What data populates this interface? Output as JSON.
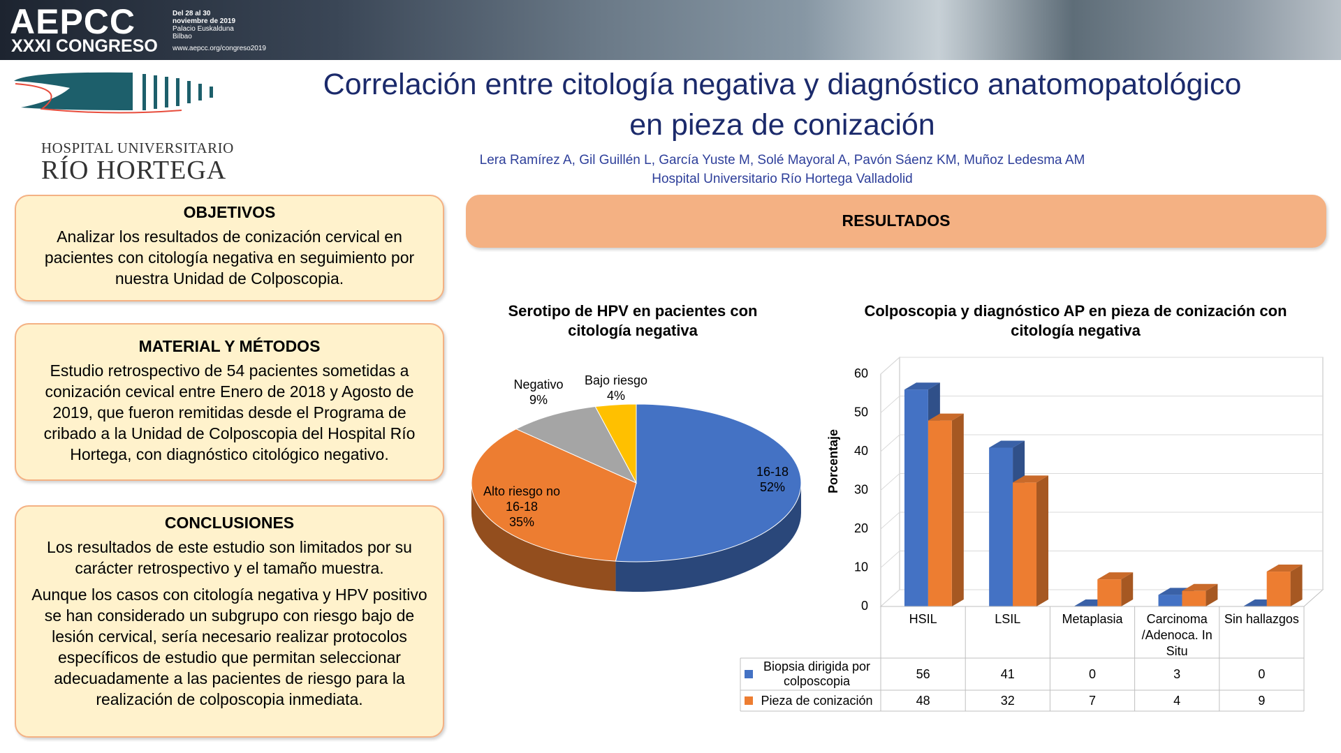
{
  "banner": {
    "name": "AEPCC",
    "edition": "XXXI CONGRESO",
    "details": [
      "Del 28 al 30",
      "noviembre de 2019",
      "Palacio Euskalduna",
      "Bilbao",
      "www.aepcc.org/congreso2019"
    ]
  },
  "logo": {
    "line1": "HOSPITAL UNIVERSITARIO",
    "line2": "RÍO HORTEGA"
  },
  "title": [
    "Correlación entre citología negativa y diagnóstico anatomopatológico",
    "en pieza de conización"
  ],
  "authors": "Lera Ramírez A, Gil Guillén L, García Yuste M, Solé Mayoral A, Pavón Sáenz KM, Muñoz Ledesma AM",
  "affiliation": "Hospital Universitario Río Hortega Valladolid",
  "sections": {
    "objetivos": {
      "title": "OBJETIVOS",
      "paragraphs": [
        "Analizar los resultados de conización cervical en pacientes con citología negativa en seguimiento por nuestra Unidad de Colposcopia."
      ]
    },
    "material": {
      "title": "MATERIAL Y MÉTODOS",
      "paragraphs": [
        "Estudio retrospectivo de 54 pacientes sometidas a conización cevical entre Enero de 2018 y Agosto de 2019, que fueron remitidas desde el Programa de cribado a la Unidad de Colposcopia del Hospital Río Hortega, con diagnóstico citológico negativo."
      ]
    },
    "conclusiones": {
      "title": "CONCLUSIONES",
      "paragraphs": [
        "Los resultados de este estudio son limitados por su carácter retrospectivo y el tamaño muestra.",
        "Aunque los casos con citología negativa y HPV positivo se han considerado un subgrupo con riesgo bajo de lesión cervical, sería necesario realizar protocolos específicos de estudio que permitan seleccionar adecuadamente a las pacientes de riesgo para la realización de colposcopia inmediata."
      ]
    },
    "resultados": {
      "title": "RESULTADOS"
    }
  },
  "chart_data": [
    {
      "type": "pie",
      "title": "Serotipo de HPV en pacientes con citología negativa",
      "categories": [
        "16-18",
        "Alto riesgo no 16-18",
        "Negativo",
        "Bajo riesgo"
      ],
      "values": [
        52,
        35,
        9,
        4
      ],
      "value_labels": [
        "52%",
        "35%",
        "9%",
        "4%"
      ],
      "colors": [
        "#4472c4",
        "#ed7d31",
        "#a5a5a5",
        "#ffc000"
      ]
    },
    {
      "type": "bar",
      "title": "Colposcopia y diagnóstico AP en pieza de conización con citología negativa",
      "ylabel": "Porcentaje",
      "categories": [
        "HSIL",
        "LSIL",
        "Metaplasia",
        "Carcinoma /Adenoca. In Situ",
        "Sin hallazgos"
      ],
      "series": [
        {
          "name": "Biopsia dirigida por colposcopia",
          "color": "#4472c4",
          "values": [
            56,
            41,
            0,
            3,
            0
          ]
        },
        {
          "name": "Pieza de conización",
          "color": "#ed7d31",
          "values": [
            48,
            32,
            7,
            4,
            9
          ]
        }
      ],
      "ylim": [
        0,
        60
      ],
      "yticks": [
        0,
        10,
        20,
        30,
        40,
        50,
        60
      ],
      "grid": true
    }
  ]
}
